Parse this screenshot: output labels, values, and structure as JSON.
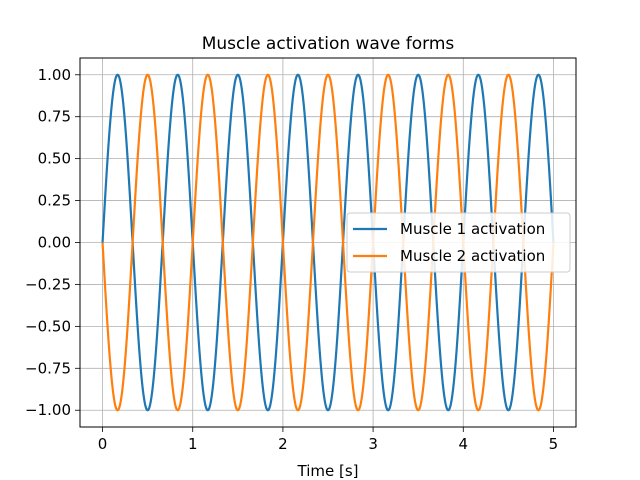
{
  "chart_data": {
    "type": "line",
    "title": "Muscle activation wave forms",
    "xlabel": "Time [s]",
    "ylabel": "",
    "xlim": [
      -0.25,
      5.25
    ],
    "ylim": [
      -1.1,
      1.1
    ],
    "x_ticks": [
      "0",
      "1",
      "2",
      "3",
      "4",
      "5"
    ],
    "y_ticks": [
      "1.00",
      "0.75",
      "0.50",
      "0.25",
      "0.00",
      "−0.25",
      "−0.50",
      "−0.75",
      "−1.00"
    ],
    "grid": true,
    "legend_position": "center-right",
    "series": [
      {
        "name": "Muscle 1 activation",
        "color": "#1f77b4",
        "function": "sin(3*pi*t)",
        "x_start": 0,
        "x_end": 5,
        "peaks_at": [
          0.1667,
          0.8333,
          1.5,
          2.1667,
          2.8333,
          3.5,
          4.1667,
          4.8333
        ],
        "troughs_at": [
          0.5,
          1.1667,
          1.8333,
          2.5,
          3.1667,
          3.8333,
          4.5
        ]
      },
      {
        "name": "Muscle 2 activation",
        "color": "#ff7f0e",
        "function": "-sin(3*pi*t)",
        "x_start": 0,
        "x_end": 5,
        "peaks_at": [
          0.5,
          1.1667,
          1.8333,
          2.5,
          3.1667,
          3.8333,
          4.5
        ],
        "troughs_at": [
          0.1667,
          0.8333,
          1.5,
          2.1667,
          2.8333,
          3.5,
          4.1667,
          4.8333
        ]
      }
    ]
  }
}
